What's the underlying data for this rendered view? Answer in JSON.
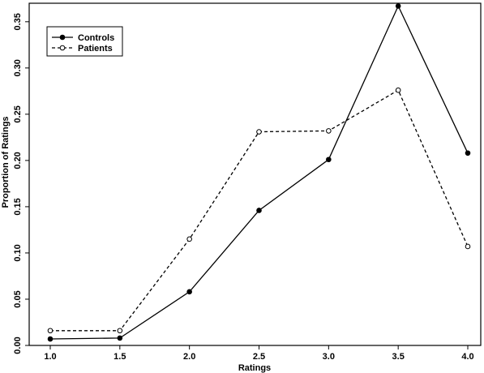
{
  "chart_data": {
    "type": "line",
    "title": "",
    "xlabel": "Ratings",
    "ylabel": "Proportion of Ratings",
    "x": [
      1.0,
      1.5,
      2.0,
      2.5,
      3.0,
      3.5,
      4.0
    ],
    "x_tick_labels": [
      "1.0",
      "1.5",
      "2.0",
      "2.5",
      "3.0",
      "3.5",
      "4.0"
    ],
    "xlim": [
      1.0,
      4.0
    ],
    "ylim": [
      0.0,
      0.37
    ],
    "y_ticks": [
      0.0,
      0.05,
      0.1,
      0.15,
      0.2,
      0.25,
      0.3,
      0.35
    ],
    "y_tick_labels": [
      "0.00",
      "0.05",
      "0.10",
      "0.15",
      "0.20",
      "0.25",
      "0.30",
      "0.35"
    ],
    "grid": false,
    "legend_position": "top-left",
    "series": [
      {
        "name": "Controls",
        "line_style": "solid",
        "marker": "filled-circle",
        "values": [
          0.007,
          0.008,
          0.058,
          0.146,
          0.201,
          0.367,
          0.208
        ]
      },
      {
        "name": "Patients",
        "line_style": "dashed",
        "marker": "open-circle",
        "values": [
          0.016,
          0.016,
          0.115,
          0.231,
          0.232,
          0.276,
          0.107
        ]
      }
    ]
  }
}
